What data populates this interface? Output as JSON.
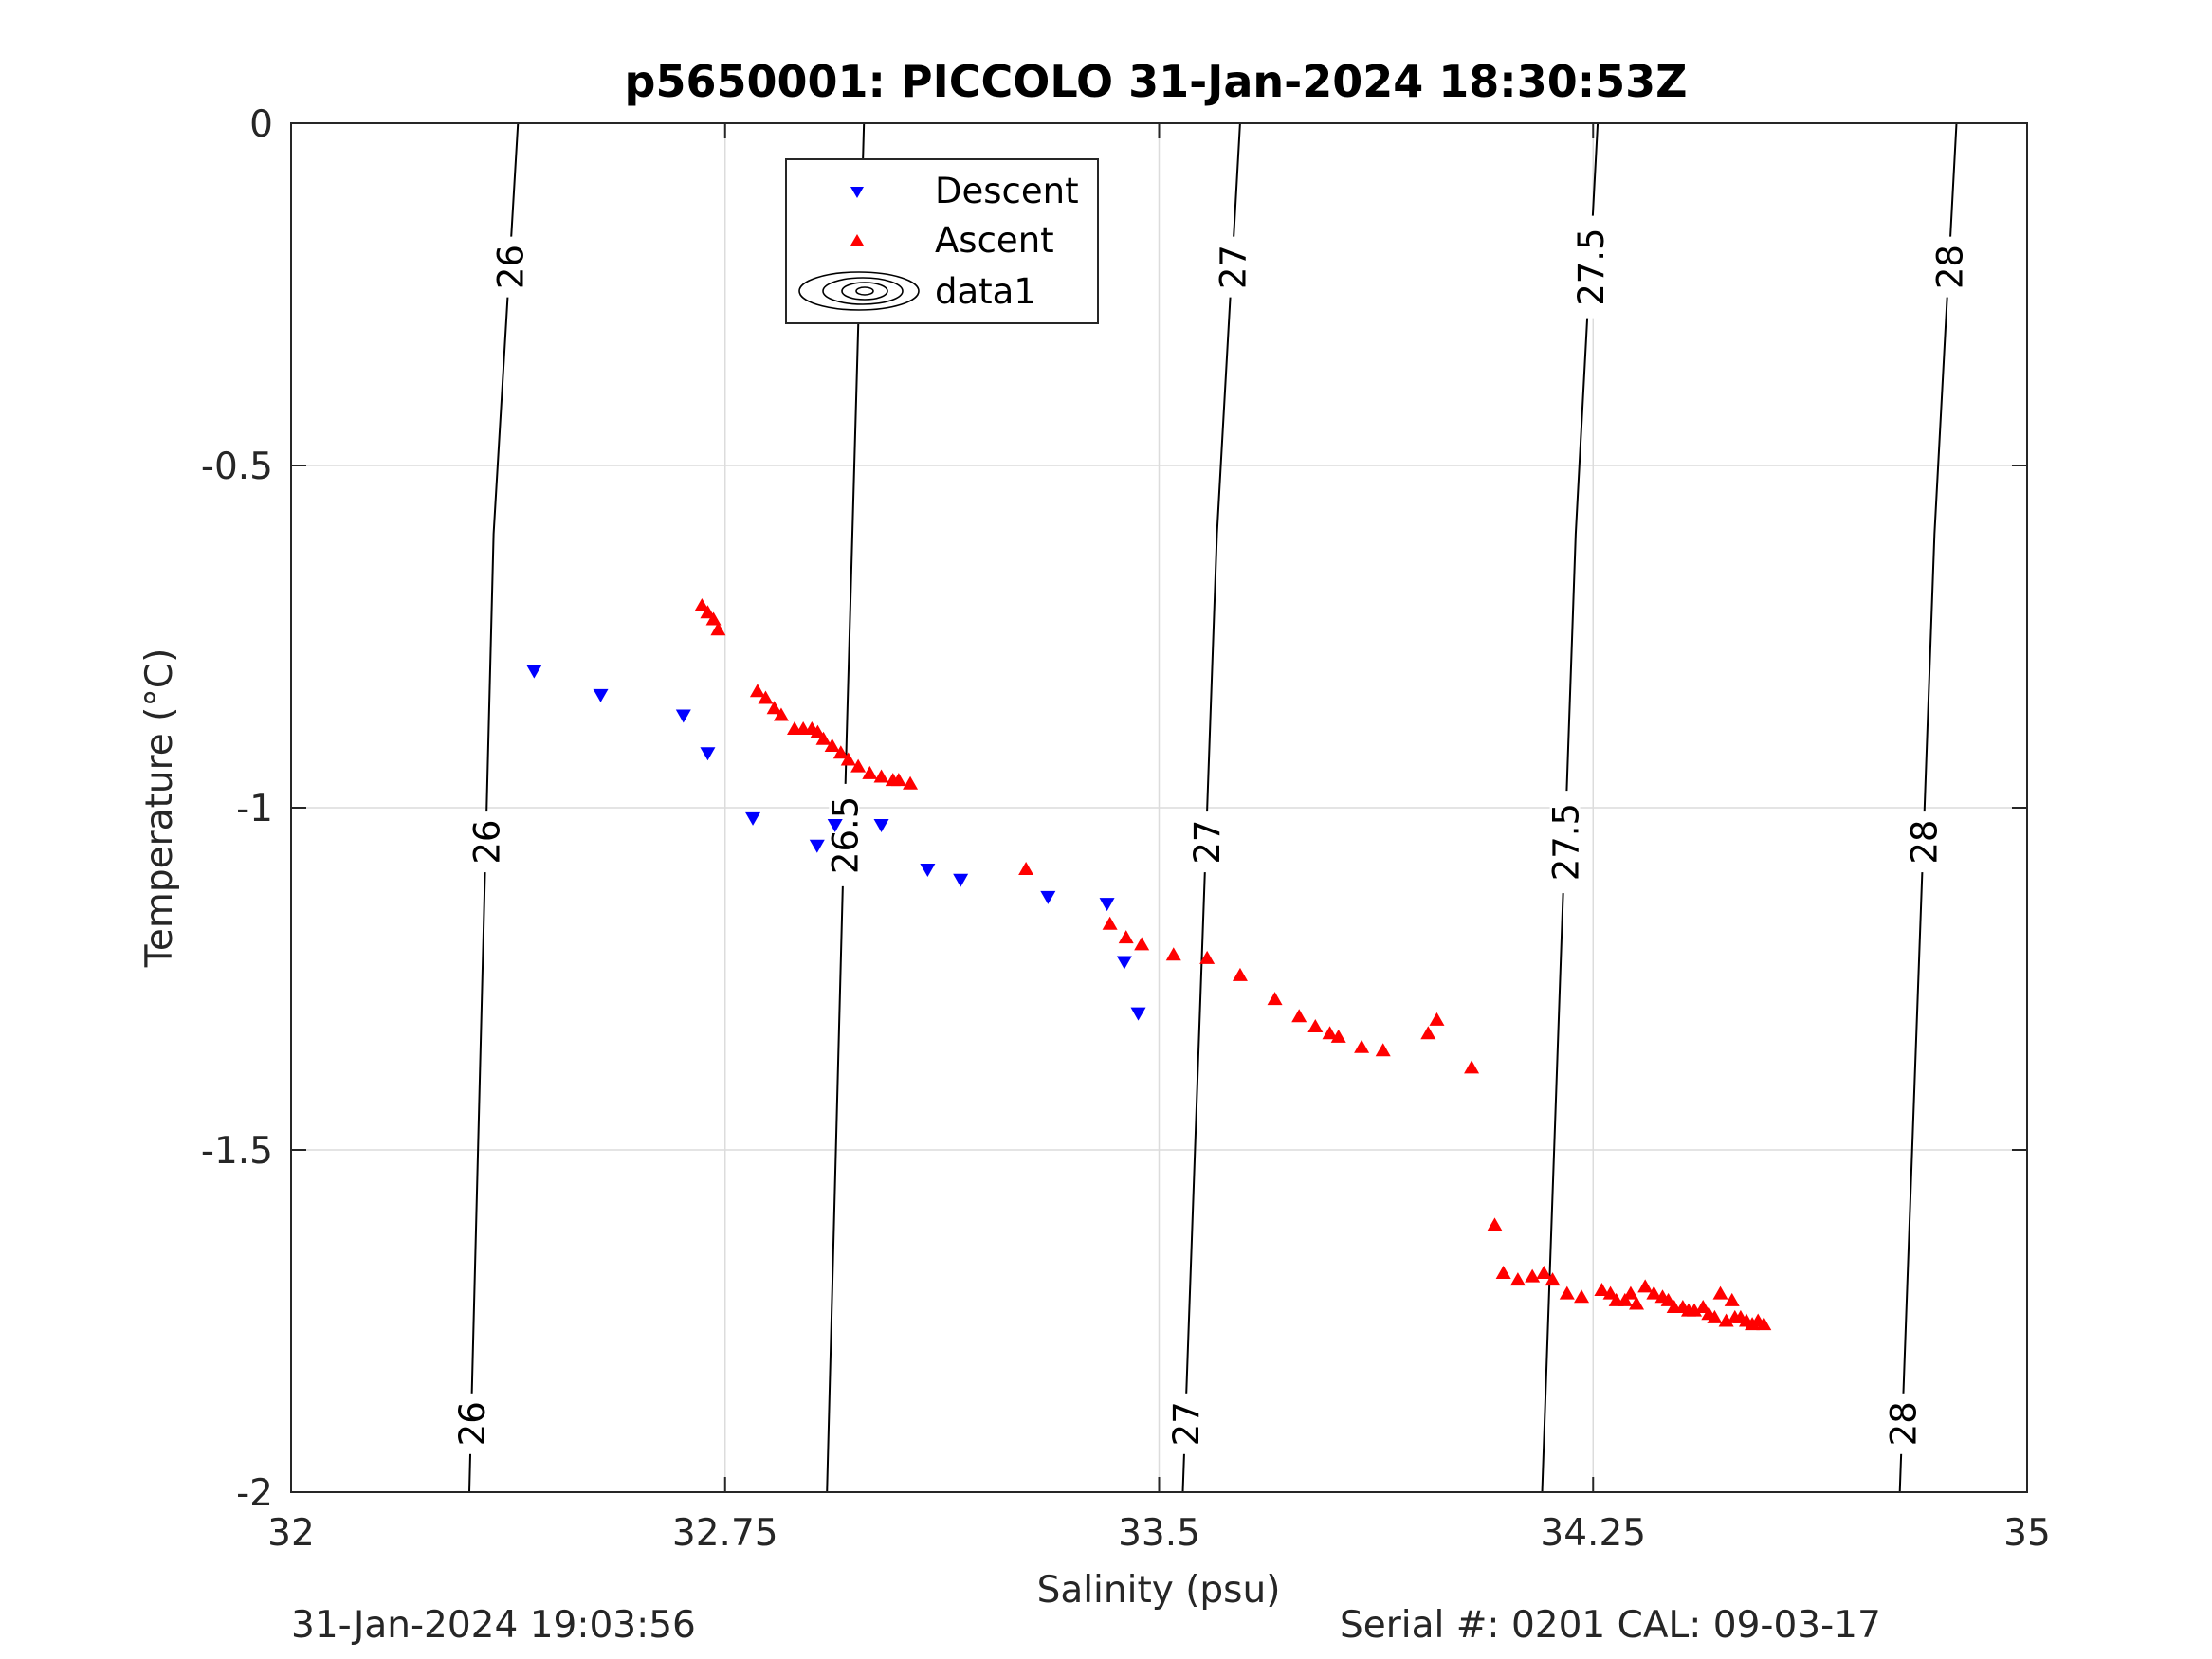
{
  "chart_data": {
    "type": "scatter",
    "title": "p5650001: PICCOLO 31-Jan-2024 18:30:53Z",
    "xlabel": "Salinity (psu)",
    "ylabel": "Temperature (°C)",
    "xlim": [
      32,
      35
    ],
    "ylim": [
      -2,
      0
    ],
    "xticks": [
      32,
      32.75,
      33.5,
      34.25,
      35
    ],
    "xtick_labels": [
      "32",
      "32.75",
      "33.5",
      "34.25",
      "35"
    ],
    "yticks": [
      0,
      -0.5,
      -1,
      -1.5,
      -2
    ],
    "ytick_labels": [
      "0",
      "-0.5",
      "-1",
      "-1.5",
      "-2"
    ],
    "grid": true,
    "legend_position": "top-center",
    "contours": [
      {
        "label": "26",
        "points": [
          [
            32.392,
            0
          ],
          [
            32.35,
            -0.6
          ],
          [
            32.308,
            -2
          ]
        ],
        "label_y": [
          -0.21,
          -1.05,
          -1.9
        ]
      },
      {
        "label": "26.5",
        "points": [
          [
            32.99,
            0
          ],
          [
            32.96,
            -0.9
          ],
          [
            32.926,
            -2
          ]
        ],
        "label_y": [
          -0.19,
          -1.04
        ]
      },
      {
        "label": "27",
        "points": [
          [
            33.64,
            0
          ],
          [
            33.6,
            -0.6
          ],
          [
            33.541,
            -2
          ]
        ],
        "label_y": [
          -0.21,
          -1.05,
          -1.9
        ]
      },
      {
        "label": "27.5",
        "points": [
          [
            34.258,
            0
          ],
          [
            34.22,
            -0.6
          ],
          [
            34.162,
            -2
          ]
        ],
        "label_y": [
          -0.21,
          -1.05
        ]
      },
      {
        "label": "28",
        "points": [
          [
            34.878,
            0
          ],
          [
            34.84,
            -0.6
          ],
          [
            34.78,
            -2
          ]
        ],
        "label_y": [
          -0.21,
          -1.05,
          -1.9
        ]
      }
    ],
    "series": [
      {
        "name": "Descent",
        "color": "#0000ff",
        "marker": "triangle-down",
        "points": [
          [
            32.42,
            -0.8
          ],
          [
            32.535,
            -0.835
          ],
          [
            32.678,
            -0.865
          ],
          [
            32.72,
            -0.92
          ],
          [
            32.798,
            -1.015
          ],
          [
            32.909,
            -1.055
          ],
          [
            32.94,
            -1.025
          ],
          [
            33.02,
            -1.025
          ],
          [
            33.1,
            -1.09
          ],
          [
            33.157,
            -1.105
          ],
          [
            33.308,
            -1.13
          ],
          [
            33.41,
            -1.14
          ],
          [
            33.44,
            -1.225
          ],
          [
            33.464,
            -1.3
          ]
        ]
      },
      {
        "name": "Ascent",
        "color": "#ff0000",
        "marker": "triangle-up",
        "points": [
          [
            32.71,
            -0.705
          ],
          [
            32.72,
            -0.715
          ],
          [
            32.73,
            -0.725
          ],
          [
            32.738,
            -0.74
          ],
          [
            32.806,
            -0.83
          ],
          [
            32.82,
            -0.84
          ],
          [
            32.835,
            -0.855
          ],
          [
            32.847,
            -0.865
          ],
          [
            32.87,
            -0.885
          ],
          [
            32.885,
            -0.885
          ],
          [
            32.9,
            -0.885
          ],
          [
            32.91,
            -0.89
          ],
          [
            32.92,
            -0.9
          ],
          [
            32.935,
            -0.91
          ],
          [
            32.95,
            -0.92
          ],
          [
            32.963,
            -0.93
          ],
          [
            32.98,
            -0.94
          ],
          [
            33.0,
            -0.95
          ],
          [
            33.02,
            -0.955
          ],
          [
            33.04,
            -0.96
          ],
          [
            33.05,
            -0.96
          ],
          [
            33.07,
            -0.965
          ],
          [
            33.27,
            -1.09
          ],
          [
            33.415,
            -1.17
          ],
          [
            33.443,
            -1.19
          ],
          [
            33.47,
            -1.2
          ],
          [
            33.525,
            -1.215
          ],
          [
            33.583,
            -1.22
          ],
          [
            33.64,
            -1.245
          ],
          [
            33.7,
            -1.28
          ],
          [
            33.742,
            -1.305
          ],
          [
            33.77,
            -1.32
          ],
          [
            33.795,
            -1.33
          ],
          [
            33.81,
            -1.335
          ],
          [
            33.85,
            -1.35
          ],
          [
            33.887,
            -1.355
          ],
          [
            33.965,
            -1.33
          ],
          [
            33.98,
            -1.31
          ],
          [
            34.04,
            -1.38
          ],
          [
            34.08,
            -1.61
          ],
          [
            34.095,
            -1.68
          ],
          [
            34.12,
            -1.69
          ],
          [
            34.145,
            -1.685
          ],
          [
            34.165,
            -1.68
          ],
          [
            34.18,
            -1.69
          ],
          [
            34.205,
            -1.71
          ],
          [
            34.23,
            -1.715
          ],
          [
            34.265,
            -1.705
          ],
          [
            34.28,
            -1.71
          ],
          [
            34.29,
            -1.72
          ],
          [
            34.305,
            -1.72
          ],
          [
            34.315,
            -1.71
          ],
          [
            34.325,
            -1.725
          ],
          [
            34.34,
            -1.7
          ],
          [
            34.355,
            -1.71
          ],
          [
            34.37,
            -1.715
          ],
          [
            34.38,
            -1.72
          ],
          [
            34.39,
            -1.73
          ],
          [
            34.405,
            -1.73
          ],
          [
            34.415,
            -1.735
          ],
          [
            34.425,
            -1.735
          ],
          [
            34.44,
            -1.73
          ],
          [
            34.45,
            -1.74
          ],
          [
            34.46,
            -1.745
          ],
          [
            34.47,
            -1.71
          ],
          [
            34.48,
            -1.75
          ],
          [
            34.49,
            -1.72
          ],
          [
            34.495,
            -1.745
          ],
          [
            34.505,
            -1.745
          ],
          [
            34.515,
            -1.75
          ],
          [
            34.525,
            -1.755
          ],
          [
            34.535,
            -1.75
          ],
          [
            34.545,
            -1.755
          ]
        ]
      }
    ],
    "legend": [
      {
        "label": "Descent",
        "marker": "triangle-down",
        "color": "#0000ff"
      },
      {
        "label": "Ascent",
        "marker": "triangle-up",
        "color": "#ff0000"
      },
      {
        "label": "data1",
        "marker": "contour",
        "color": "#000000"
      }
    ]
  },
  "footer": {
    "timestamp": "31-Jan-2024 19:03:56",
    "serial_cal": "Serial #: 0201  CAL: 09-03-17"
  }
}
